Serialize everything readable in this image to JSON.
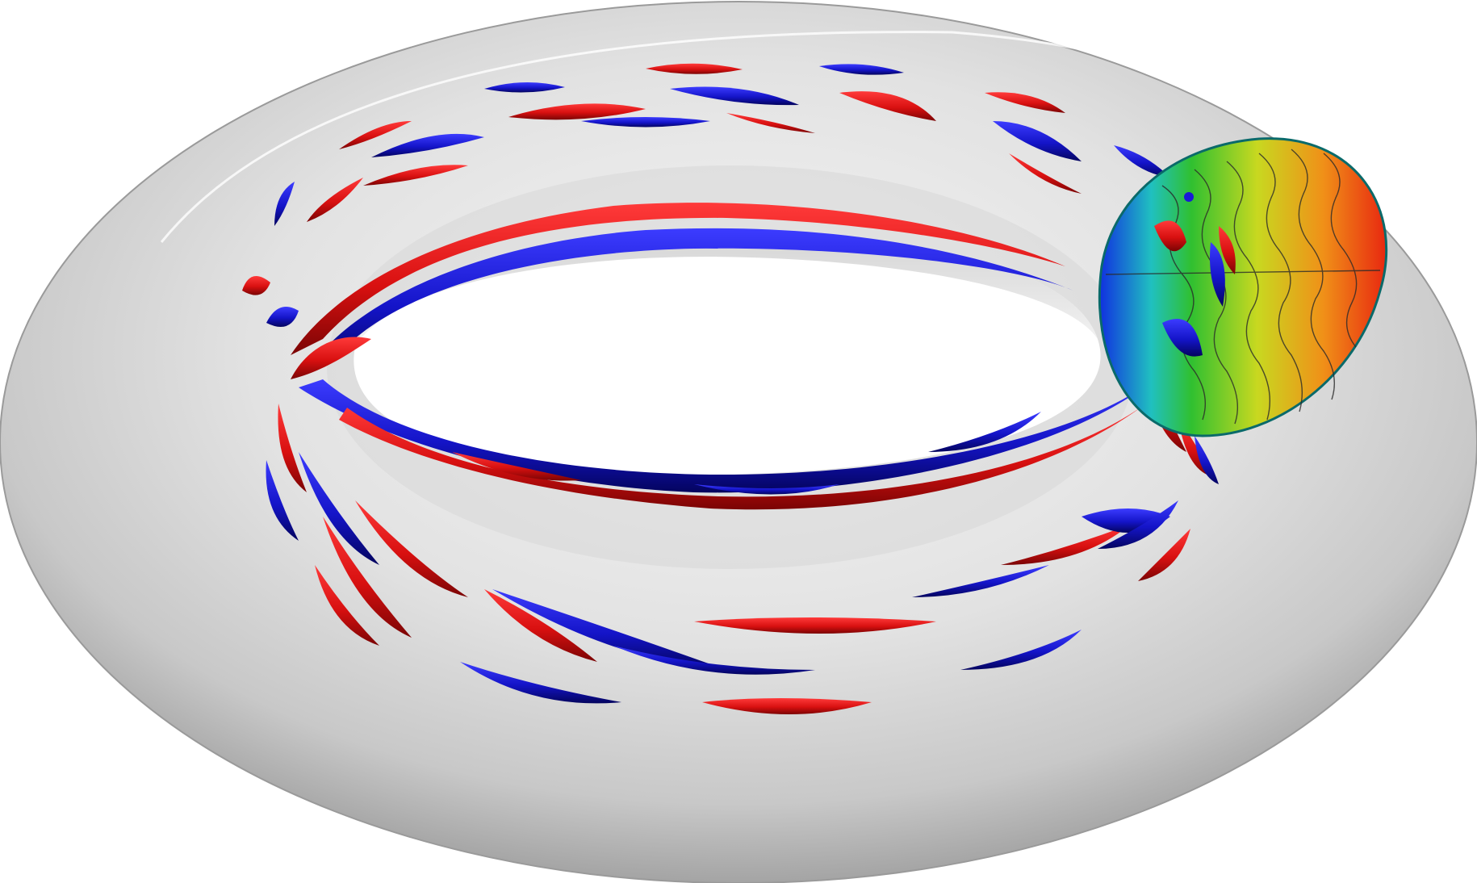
{
  "figure": {
    "subject": "torus-visualization",
    "background": "#ffffff"
  },
  "colors": {
    "torus_light": "#f4f4f4",
    "torus_mid": "#d6d6d6",
    "torus_dark": "#9c9c9c",
    "hole": "#ffffff",
    "red_structure": "#e01414",
    "red_shadow": "#8a0606",
    "blue_structure": "#1a1ad6",
    "blue_shadow": "#05056e",
    "slice_cold": "#1030e0",
    "slice_green": "#20c040",
    "slice_yellow": "#e8e020",
    "slice_hot": "#e83010"
  },
  "icons": {
    "torus": "torus-surface",
    "cross_section": "poloidal-cross-section-slice"
  }
}
